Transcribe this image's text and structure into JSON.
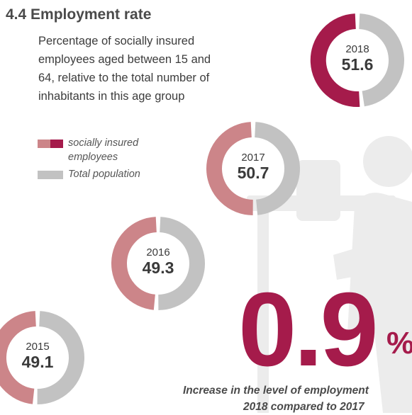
{
  "section": {
    "title": "4.4 Employment rate",
    "subtitle": "Percentage of socially insured employees aged between 15 and 64, relative to the total number of inhabitants in this age group"
  },
  "legend": {
    "employees_label": "socially insured employees",
    "total_label": "Total population"
  },
  "colors": {
    "employees": "#cc8589",
    "employees_latest": "#a51b4b",
    "total": "#c2c2c2",
    "watermark": "#ececec",
    "highlight": "#a51b4b"
  },
  "highlight": {
    "number": "0.9",
    "unit": "%",
    "caption_line1": "Increase in the level of employment",
    "caption_line2": "2018 compared to 2017"
  },
  "chart_data": {
    "type": "pie",
    "unit": "%",
    "series": [
      {
        "year": "2015",
        "value": 49.1
      },
      {
        "year": "2016",
        "value": 49.3
      },
      {
        "year": "2017",
        "value": 50.7
      },
      {
        "year": "2018",
        "value": 51.6
      }
    ]
  }
}
